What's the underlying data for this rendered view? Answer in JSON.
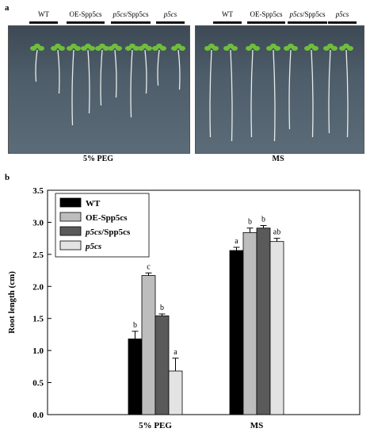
{
  "panel_a": {
    "letter": "a",
    "genotypes": [
      "WT",
      "OE-Spp5cs",
      "p5cs/Spp5cs",
      "p5cs"
    ],
    "conditions": [
      "5% PEG",
      "MS"
    ]
  },
  "panel_b": {
    "letter": "b"
  },
  "chart_data": {
    "type": "bar",
    "categories": [
      "5% PEG",
      "MS"
    ],
    "ylabel": "Root length (cm)",
    "xlabel": "",
    "ylim": [
      0,
      3.5
    ],
    "yticks": [
      "0.0",
      "0.5",
      "1.0",
      "1.5",
      "2.0",
      "2.5",
      "3.0",
      "3.5"
    ],
    "legend_position": "top-left",
    "series": [
      {
        "name": "WT",
        "color": "#000000",
        "values": [
          1.18,
          2.56
        ],
        "errors": [
          0.12,
          0.05
        ],
        "letters": [
          "b",
          "a"
        ]
      },
      {
        "name": "OE-Spp5cs",
        "color": "#bdbdbd",
        "values": [
          2.17,
          2.84
        ],
        "errors": [
          0.04,
          0.07
        ],
        "letters": [
          "c",
          "b"
        ]
      },
      {
        "name": "p5cs/Spp5cs",
        "color": "#5a5a5a",
        "values": [
          1.54,
          2.91
        ],
        "errors": [
          0.03,
          0.04
        ],
        "letters": [
          "b",
          "b"
        ]
      },
      {
        "name": "p5cs",
        "color": "#e3e3e3",
        "values": [
          0.68,
          2.7
        ],
        "errors": [
          0.2,
          0.05
        ],
        "letters": [
          "a",
          "ab"
        ]
      }
    ]
  }
}
